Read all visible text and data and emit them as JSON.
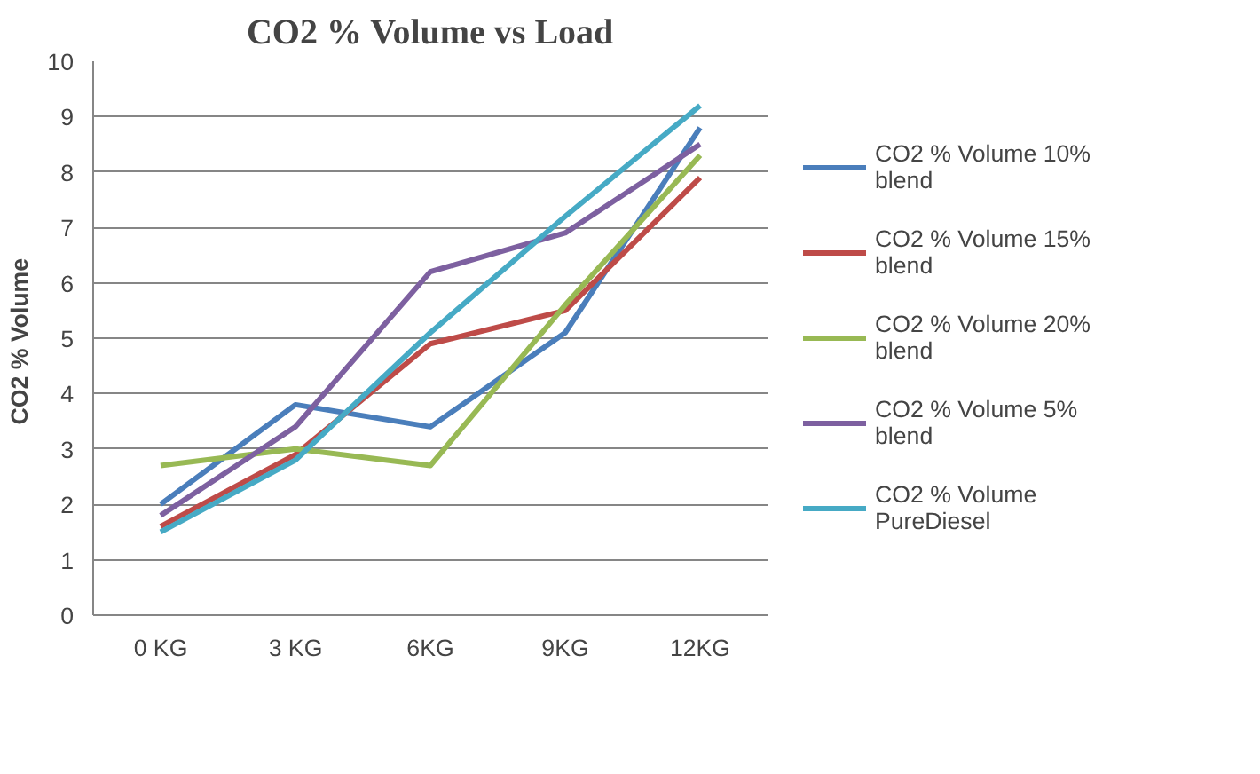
{
  "chart_data": {
    "type": "line",
    "title": "CO2 % Volume vs Load",
    "ylabel": "CO2 %  Volume",
    "categories": [
      "0 KG",
      "3 KG",
      "6KG",
      "9KG",
      "12KG"
    ],
    "series": [
      {
        "name": "CO2 % Volume 10% blend",
        "color": "#4a7ebb",
        "values": [
          2.0,
          3.8,
          3.4,
          5.1,
          8.8
        ]
      },
      {
        "name": "CO2 % Volume 15% blend",
        "color": "#be4b48",
        "values": [
          1.6,
          2.9,
          4.9,
          5.5,
          7.9
        ]
      },
      {
        "name": "CO2 % Volume 20% blend",
        "color": "#98b954",
        "values": [
          2.7,
          3.0,
          2.7,
          5.6,
          8.3
        ]
      },
      {
        "name": "CO2 % Volume 5% blend",
        "color": "#7d60a0",
        "values": [
          1.8,
          3.4,
          6.2,
          6.9,
          8.5
        ]
      },
      {
        "name": "CO2 % Volume PureDiesel",
        "color": "#46aac5",
        "values": [
          1.5,
          2.8,
          5.1,
          7.2,
          9.2
        ]
      }
    ],
    "ylim": [
      0,
      10
    ],
    "yticks": [
      0,
      1,
      2,
      3,
      4,
      5,
      6,
      7,
      8,
      9,
      10
    ],
    "grid": "y",
    "legend": "right",
    "marker": "none",
    "line_style": "solid"
  }
}
